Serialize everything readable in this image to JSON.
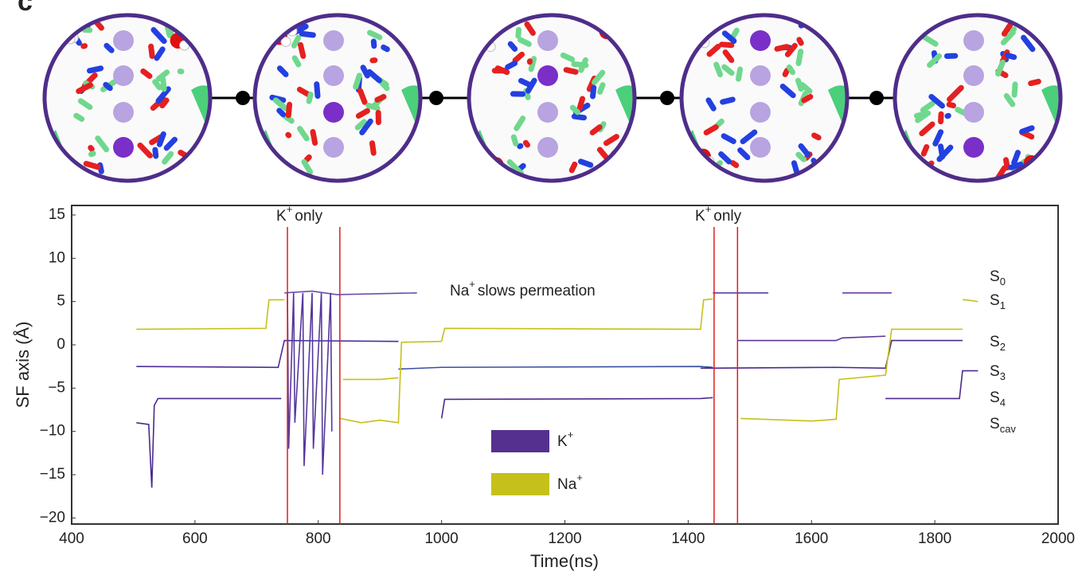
{
  "panel_label": "c",
  "chart_data": {
    "type": "line",
    "xlabel": "Time(ns)",
    "ylabel": "SF axis (Å)",
    "xlim": [
      400,
      2000
    ],
    "xticks": [
      400,
      600,
      800,
      1000,
      1200,
      1400,
      1600,
      1800,
      2000
    ],
    "ylim": [
      -20.7,
      16.1
    ],
    "yticks": [
      {
        "value": -20,
        "label": "−20"
      },
      {
        "value": -15,
        "label": "−15"
      },
      {
        "value": -10,
        "label": "−10"
      },
      {
        "value": -5,
        "label": "−5"
      },
      0,
      5,
      10,
      15
    ],
    "grid": false,
    "vlines": {
      "color": "#e01c1c",
      "x": [
        750,
        835,
        1442,
        1480
      ]
    },
    "annotations": [
      {
        "text": "K",
        "sup": "+",
        "rest": "only"
      },
      {
        "text": "K",
        "sup": "+",
        "rest": "only"
      },
      {
        "text": "Na",
        "sup": "+",
        "rest": "slows permeation"
      }
    ],
    "sites": [
      {
        "text": "S",
        "sub": "0"
      },
      {
        "text": "S",
        "sub": "1"
      },
      {
        "text": "S",
        "sub": "2"
      },
      {
        "text": "S",
        "sub": "3"
      },
      {
        "text": "S",
        "sub": "4"
      },
      {
        "text": "S",
        "sub": "cav"
      }
    ],
    "series": [
      {
        "name": "K",
        "name_sup": "+",
        "color": "#56308f",
        "traces": [
          {
            "color": "#4a2a8a",
            "x": [
              505,
              525,
              530,
              534,
              540,
              740
            ],
            "values": [
              -9,
              -9.2,
              -16.5,
              -7,
              -6.2,
              -6.2
            ]
          },
          {
            "color": "#4b2c99",
            "x": [
              505,
              735,
              745,
              930
            ],
            "values": [
              -2.5,
              -2.6,
              0.5,
              0.4
            ]
          },
          {
            "color": "#6a4db0",
            "x": [
              745,
              790,
              830,
              960
            ],
            "values": [
              6,
              6.2,
              5.8,
              6
            ]
          },
          {
            "color": "#55389c",
            "x": [
              750,
              752,
              760,
              762,
              775,
              777,
              790,
              792,
              805,
              807,
              820,
              822
            ],
            "values": [
              6,
              -12,
              6,
              -9,
              6,
              -14,
              6,
              -12,
              6,
              -15,
              6,
              -10
            ]
          },
          {
            "color": "#3a4fa0",
            "x": [
              930,
              1000,
              1420,
              1440
            ],
            "values": [
              -2.8,
              -2.6,
              -2.5,
              -2.6
            ]
          },
          {
            "color": "#4d2a8c",
            "x": [
              1000,
              1005,
              1420,
              1440
            ],
            "values": [
              -8.5,
              -6.3,
              -6.2,
              -6.1
            ]
          },
          {
            "color": "#5a3fa6",
            "x": [
              1440,
              1530
            ],
            "values": [
              6,
              6
            ]
          },
          {
            "color": "#5a3596",
            "x": [
              1480,
              1640,
              1650,
              1720
            ],
            "values": [
              0.5,
              0.5,
              0.8,
              1
            ]
          },
          {
            "color": "#6a3fa8",
            "x": [
              1650,
              1730
            ],
            "values": [
              6,
              6
            ]
          },
          {
            "color": "#4a2a8a",
            "x": [
              1420,
              1640,
              1720,
              1730,
              1845
            ],
            "values": [
              -2.7,
              -2.6,
              -2.7,
              0.5,
              0.5
            ]
          },
          {
            "color": "#4d2a8c",
            "x": [
              1720,
              1840,
              1845,
              1870
            ],
            "values": [
              -6.2,
              -6.2,
              -3,
              -3
            ]
          }
        ]
      },
      {
        "name": "Na",
        "name_sup": "+",
        "color": "#c6c01a",
        "traces": [
          {
            "color": "#c6c01a",
            "x": [
              505,
              715,
              720,
              745
            ],
            "values": [
              1.8,
              1.9,
              5.2,
              5.2
            ]
          },
          {
            "color": "#c6c01a",
            "x": [
              840,
              900,
              930
            ],
            "values": [
              -4,
              -4,
              -3.8
            ]
          },
          {
            "color": "#c6c01a",
            "x": [
              835,
              870,
              900,
              930,
              935,
              1000
            ],
            "values": [
              -8.5,
              -9,
              -8.7,
              -9,
              0.3,
              0.4
            ]
          },
          {
            "color": "#c6c01a",
            "x": [
              1000,
              1005,
              1420,
              1425,
              1440
            ],
            "values": [
              0.4,
              1.9,
              1.8,
              5.2,
              5.3
            ]
          },
          {
            "color": "#c6c01a",
            "x": [
              1485,
              1600,
              1640,
              1645,
              1720,
              1730,
              1845
            ],
            "values": [
              -8.5,
              -8.8,
              -8.6,
              -4,
              -3.5,
              1.8,
              1.8
            ]
          },
          {
            "color": "#c6c01a",
            "x": [
              1845,
              1850,
              1870
            ],
            "values": [
              5.2,
              5.2,
              5
            ]
          }
        ]
      }
    ]
  }
}
